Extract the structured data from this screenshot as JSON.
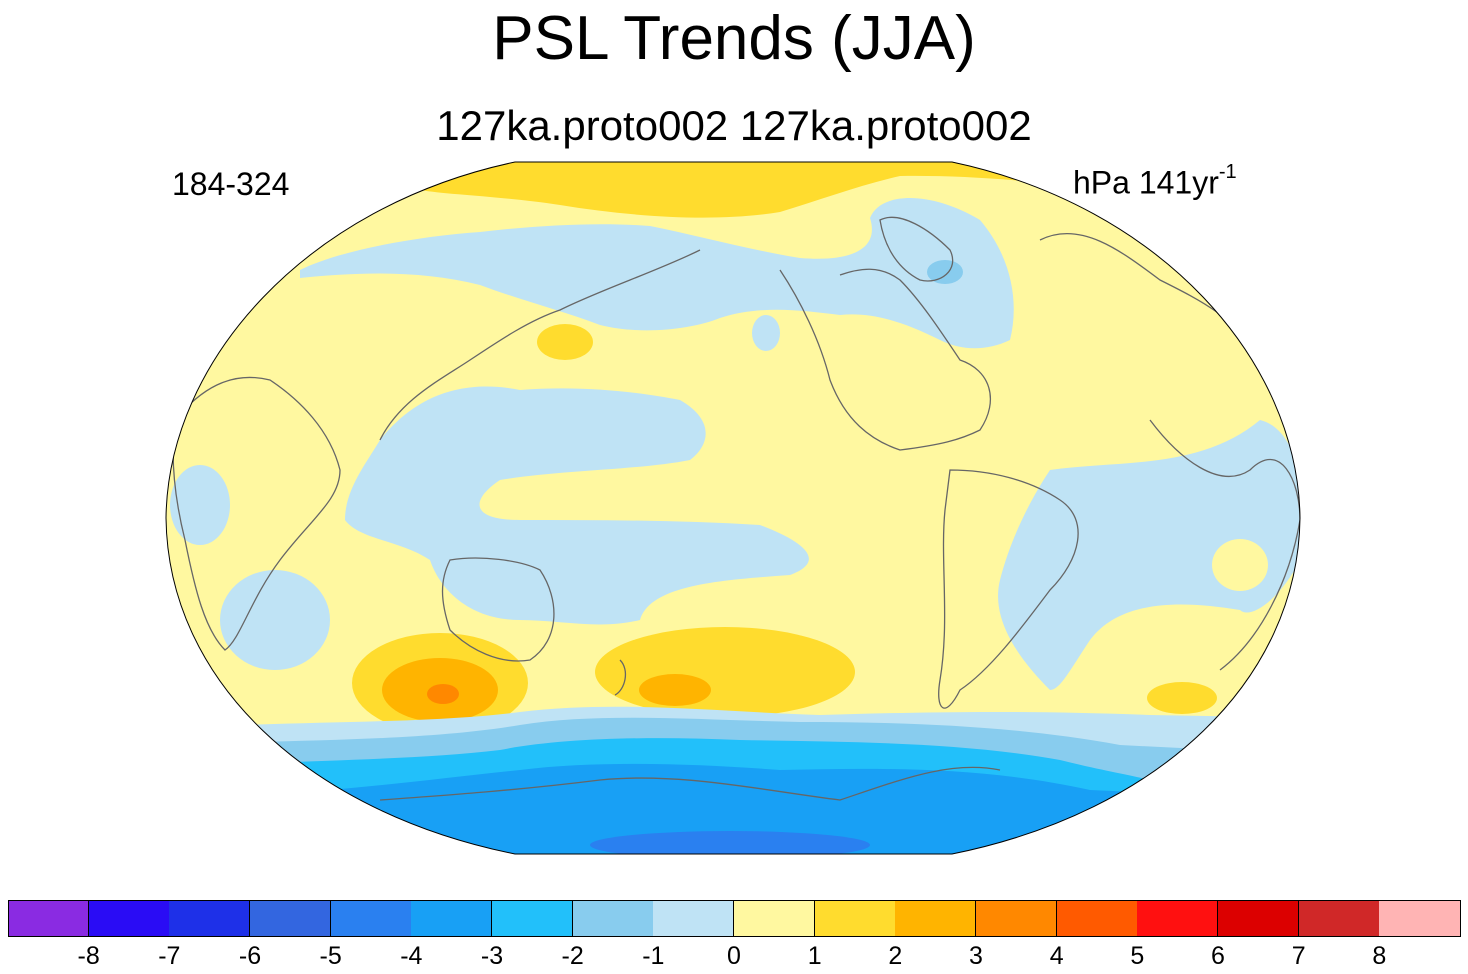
{
  "title": "PSL Trends (JJA)",
  "subtitle": "127ka.proto002  127ka.proto002",
  "left_label": "184-324",
  "units": {
    "main": "hPa 141yr",
    "exponent": "-1"
  },
  "map": {
    "projection": "robinson",
    "field": "sea level pressure trend",
    "season": "JJA"
  },
  "colorbar": {
    "colors": [
      "#8a2be2",
      "#2a0cf5",
      "#1e30e8",
      "#3366e0",
      "#2a80f0",
      "#18a0f5",
      "#22c0fa",
      "#88ccee",
      "#bfe3f5",
      "#fff8a0",
      "#ffdc2e",
      "#ffb400",
      "#ff8800",
      "#ff5a00",
      "#ff1010",
      "#dc0000",
      "#d02828",
      "#ffb4b4"
    ],
    "labels": [
      "-8",
      "-7",
      "-6",
      "-5",
      "-4",
      "-3",
      "-2",
      "-1",
      "0",
      "1",
      "2",
      "3",
      "4",
      "5",
      "6",
      "7",
      "8"
    ]
  }
}
